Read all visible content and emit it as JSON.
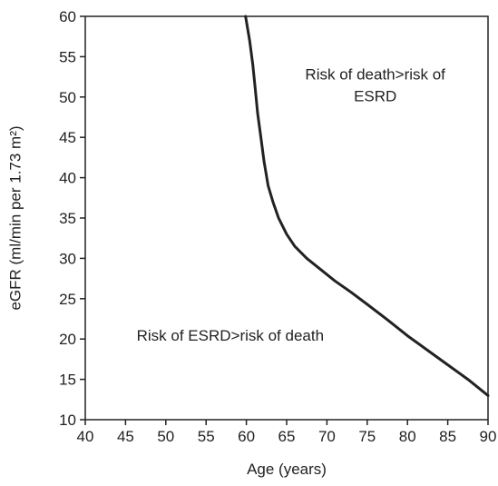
{
  "chart_data": {
    "type": "line",
    "title": "",
    "xlabel": "Age (years)",
    "ylabel": "eGFR (ml/min per 1.73 m²)",
    "xlim": [
      40,
      90
    ],
    "ylim": [
      10,
      60
    ],
    "xticks": [
      40,
      45,
      50,
      55,
      60,
      65,
      70,
      75,
      80,
      85,
      90
    ],
    "yticks": [
      10,
      15,
      20,
      25,
      30,
      35,
      40,
      45,
      50,
      55,
      60
    ],
    "grid": false,
    "legend": "none",
    "series": [
      {
        "color": "#222222",
        "points": [
          [
            59.9,
            60.0
          ],
          [
            60.4,
            57.0
          ],
          [
            60.8,
            54.0
          ],
          [
            61.1,
            51.0
          ],
          [
            61.4,
            48.0
          ],
          [
            61.8,
            45.0
          ],
          [
            62.2,
            42.0
          ],
          [
            62.7,
            39.0
          ],
          [
            63.3,
            37.0
          ],
          [
            64.0,
            35.0
          ],
          [
            65.0,
            33.0
          ],
          [
            66.0,
            31.5
          ],
          [
            67.5,
            30.0
          ],
          [
            69.0,
            28.8
          ],
          [
            71.0,
            27.2
          ],
          [
            73.0,
            25.8
          ],
          [
            75.0,
            24.3
          ],
          [
            77.5,
            22.4
          ],
          [
            80.0,
            20.4
          ],
          [
            82.5,
            18.6
          ],
          [
            85.0,
            16.8
          ],
          [
            87.5,
            15.0
          ],
          [
            90.0,
            13.0
          ]
        ]
      }
    ],
    "annotations": [
      {
        "text_lines": [
          "Risk of death>risk of",
          "ESRD"
        ],
        "x": 76,
        "y": 51.5
      },
      {
        "text_lines": [
          "Risk of ESRD>risk of death"
        ],
        "x": 58,
        "y": 20.5
      }
    ]
  }
}
